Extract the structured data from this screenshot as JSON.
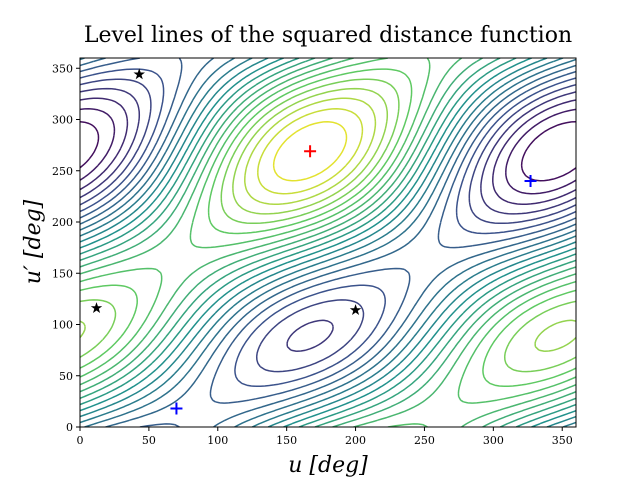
{
  "chart_data": {
    "type": "contour",
    "title": "Level lines of the squared distance function",
    "xlabel": "u [deg]",
    "ylabel": "u′ [deg]",
    "xlim": [
      0,
      360
    ],
    "ylim": [
      0,
      360
    ],
    "xticks": [
      0,
      50,
      100,
      150,
      200,
      250,
      300,
      350
    ],
    "yticks": [
      0,
      50,
      100,
      150,
      200,
      250,
      300,
      350
    ],
    "series": [
      {
        "marker": "plus",
        "color": "#ff0000",
        "x": [
          167
        ],
        "y": [
          269
        ]
      },
      {
        "marker": "plus",
        "color": "#0000ff",
        "x": [
          327,
          70
        ],
        "y": [
          240,
          18
        ]
      },
      {
        "marker": "star",
        "color": "#000000",
        "x": [
          43,
          12,
          200
        ],
        "y": [
          344,
          116,
          114
        ]
      }
    ]
  }
}
